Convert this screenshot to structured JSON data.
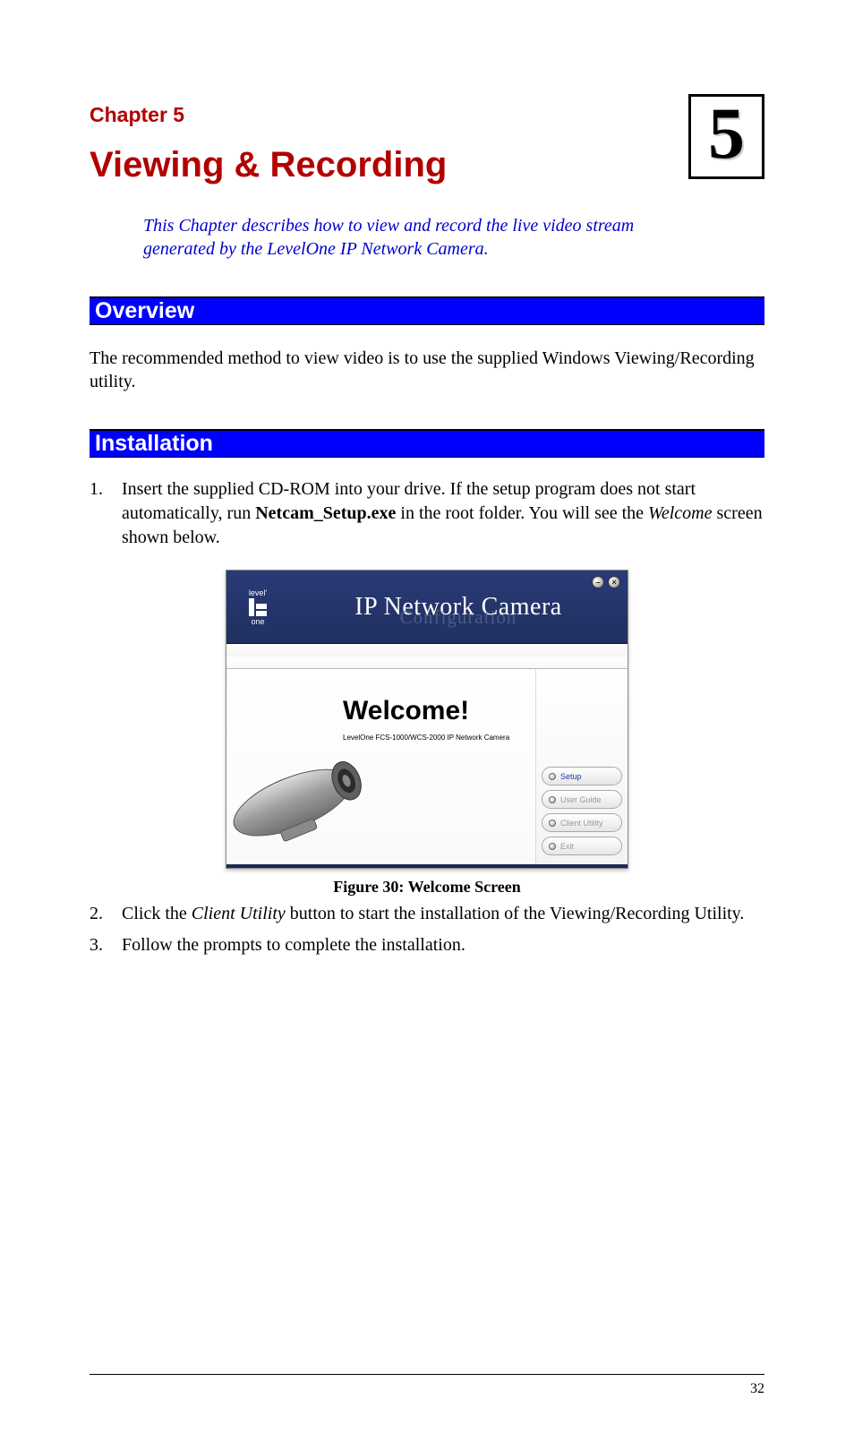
{
  "chapter": {
    "label": "Chapter 5",
    "title": "Viewing & Recording",
    "number": "5",
    "description": "This Chapter describes how to view and record the live video stream generated by the LevelOne IP Network Camera."
  },
  "sections": {
    "overview": {
      "heading": "Overview",
      "text": "The recommended method to view video is to use the supplied Windows Viewing/Recording utility."
    },
    "installation": {
      "heading": "Installation",
      "items": [
        {
          "num": "1.",
          "parts": [
            {
              "t": "Insert the supplied CD-ROM into your drive. If the setup program does not start automatically, run "
            },
            {
              "t": "Netcam_Setup.exe",
              "style": "bold"
            },
            {
              "t": " in the root folder. You will see the "
            },
            {
              "t": "Welcome",
              "style": "italic"
            },
            {
              "t": " screen shown below."
            }
          ]
        },
        {
          "num": "2.",
          "parts": [
            {
              "t": "Click the "
            },
            {
              "t": "Client Utility",
              "style": "italic"
            },
            {
              "t": " button to start the installation of the Viewing/Recording Utility."
            }
          ]
        },
        {
          "num": "3.",
          "parts": [
            {
              "t": "Follow the prompts to complete the installation."
            }
          ]
        }
      ]
    }
  },
  "installer": {
    "logo_top": "level'",
    "logo_bottom": "one",
    "title": "IP Network Camera",
    "subtitle": "Configuration",
    "minimize_glyph": "–",
    "close_glyph": "×",
    "welcome": "Welcome!",
    "welcome_sub": "LevelOne FCS-1000/WCS-2000 IP Network Camera",
    "buttons": {
      "setup": "Setup",
      "user_guide": "User Guide",
      "client_utility": "Client Utility",
      "exit": "Exit"
    },
    "colors": {
      "header_bg_top": "#2a3a78",
      "header_bg_bottom": "#20305e",
      "section_bg": "#0000ff",
      "heading_text": "#b20000",
      "link_blue": "#0000cc"
    }
  },
  "figure_caption": "Figure 30: Welcome Screen",
  "page_number": "32"
}
